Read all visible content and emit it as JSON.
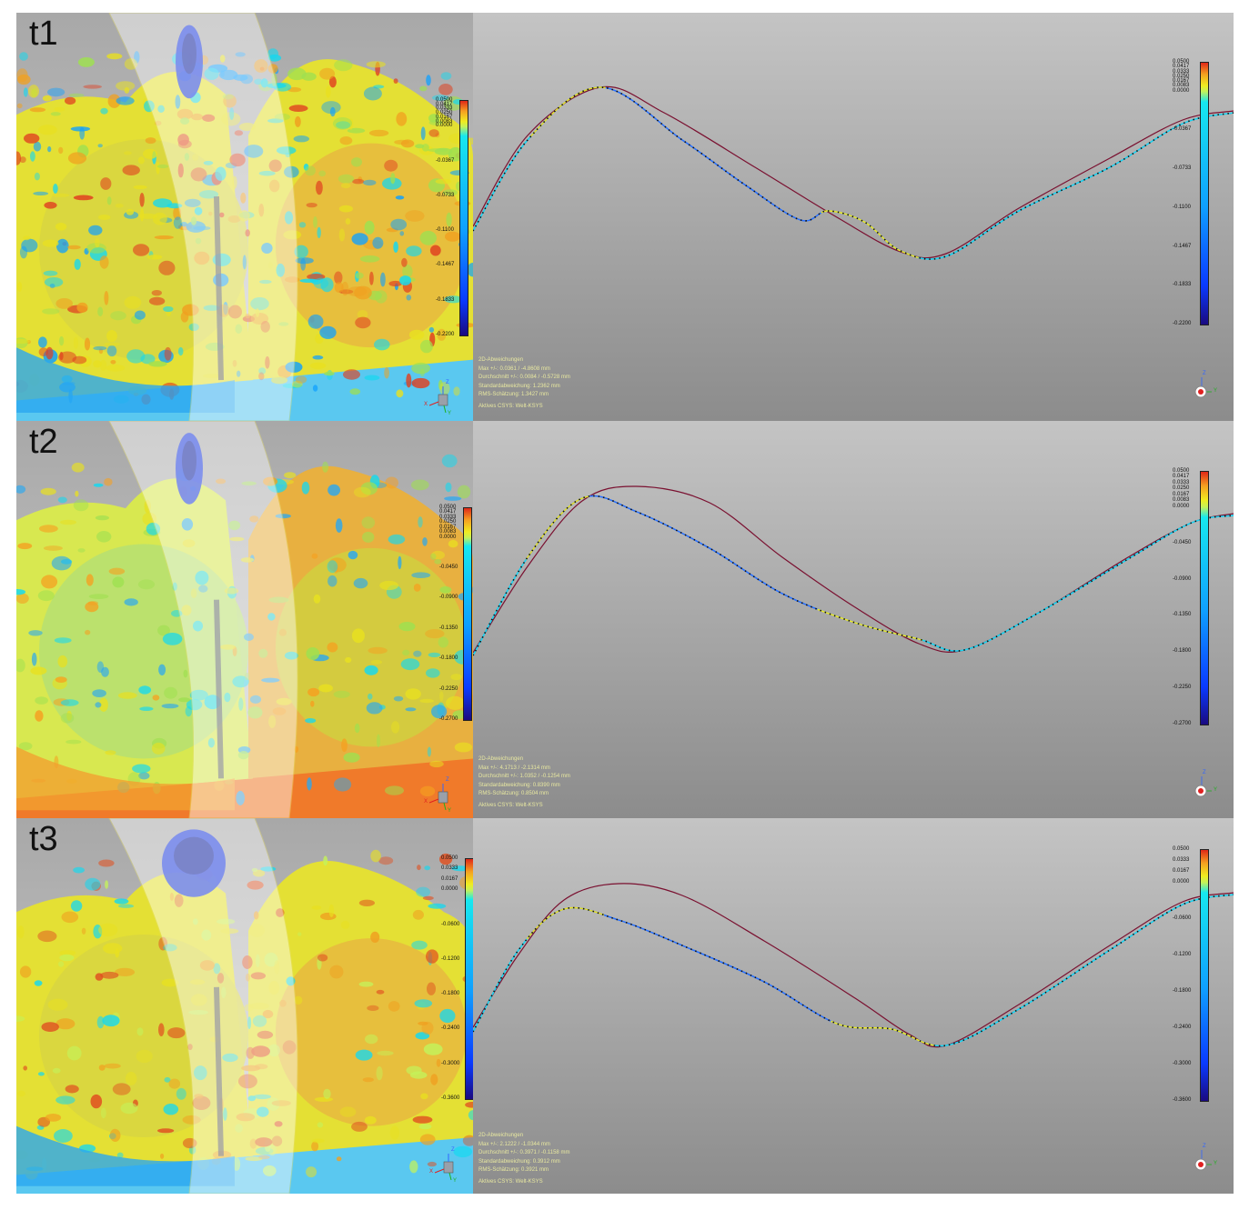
{
  "colors": {
    "colormap": [
      "#1a0a80",
      "#0a3aff",
      "#0fa0ff",
      "#16e8ef",
      "#c4f25a",
      "#f0ec20",
      "#f5a020",
      "#e02818"
    ],
    "nominal_curve": "#7a1030",
    "measured_dots": "#111111"
  },
  "panels": [
    {
      "label": "t1",
      "stats": {
        "heading": "2D-Abweichungen",
        "max": "Max +/-: 0.0361 / -4.8608 mm",
        "mean": "Durchschnitt +/-: 0.0084 / -0.5728 mm",
        "std": "Standardabweichung: 1.2362 mm",
        "rms": "RMS-Schätzung: 1.3427 mm",
        "csys": "Aktives CSYS: Welt-KSYS"
      },
      "scale_left": [
        "0.0500",
        "0.0417",
        "0.0333",
        "0.0250",
        "0.0167",
        "0.0083",
        "0.0000",
        "-0.0367",
        "-0.0733",
        "-0.1100",
        "-0.1467",
        "-0.1833",
        "-0.2200"
      ],
      "scale_right": [
        "0.0500",
        "0.0417",
        "0.0333",
        "0.0250",
        "0.0167",
        "0.0083",
        "0.0000",
        "-0.0367",
        "-0.0733",
        "-0.1100",
        "-0.1467",
        "-0.1833",
        "-0.2200"
      ],
      "axis": {
        "z": "Z",
        "x": "X",
        "y": "Y"
      }
    },
    {
      "label": "t2",
      "stats": {
        "heading": "2D-Abweichungen",
        "max": "Max +/-: 4.1713 / -2.1314 mm",
        "mean": "Durchschnitt +/-: 1.0352 / -0.1254 mm",
        "std": "Standardabweichung: 0.8390 mm",
        "rms": "RMS-Schätzung: 0.8504 mm",
        "csys": "Aktives CSYS: Welt-KSYS"
      },
      "scale_left": [
        "0.0500",
        "0.0417",
        "0.0333",
        "0.0250",
        "0.0167",
        "0.0083",
        "0.0000",
        "-0.0450",
        "-0.0900",
        "-0.1350",
        "-0.1800",
        "-0.2250",
        "-0.2700"
      ],
      "scale_right": [
        "0.0500",
        "0.0417",
        "0.0333",
        "0.0250",
        "0.0167",
        "0.0083",
        "0.0000",
        "-0.0450",
        "-0.0900",
        "-0.1350",
        "-0.1800",
        "-0.2250",
        "-0.2700"
      ],
      "axis": {
        "z": "Z",
        "x": "X",
        "y": "Y"
      }
    },
    {
      "label": "t3",
      "stats": {
        "heading": "2D-Abweichungen",
        "max": "Max +/-: 2.1222 / -1.0344 mm",
        "mean": "Durchschnitt +/-: 0.3971 / -0.1158 mm",
        "std": "Standardabweichung: 0.3912 mm",
        "rms": "RMS-Schätzung: 0.3921 mm",
        "csys": "Aktives CSYS: Welt-KSYS"
      },
      "scale_left": [
        "0.0500",
        "0.0333",
        "0.0167",
        "0.0000",
        "-0.0600",
        "-0.1200",
        "-0.1800",
        "-0.2400",
        "-0.3000",
        "-0.3600"
      ],
      "scale_right": [
        "0.0500",
        "0.0333",
        "0.0167",
        "0.0000",
        "-0.0600",
        "-0.1200",
        "-0.1800",
        "-0.2400",
        "-0.3000",
        "-0.3600"
      ],
      "axis": {
        "z": "Z",
        "x": "X",
        "y": "Y"
      }
    }
  ]
}
